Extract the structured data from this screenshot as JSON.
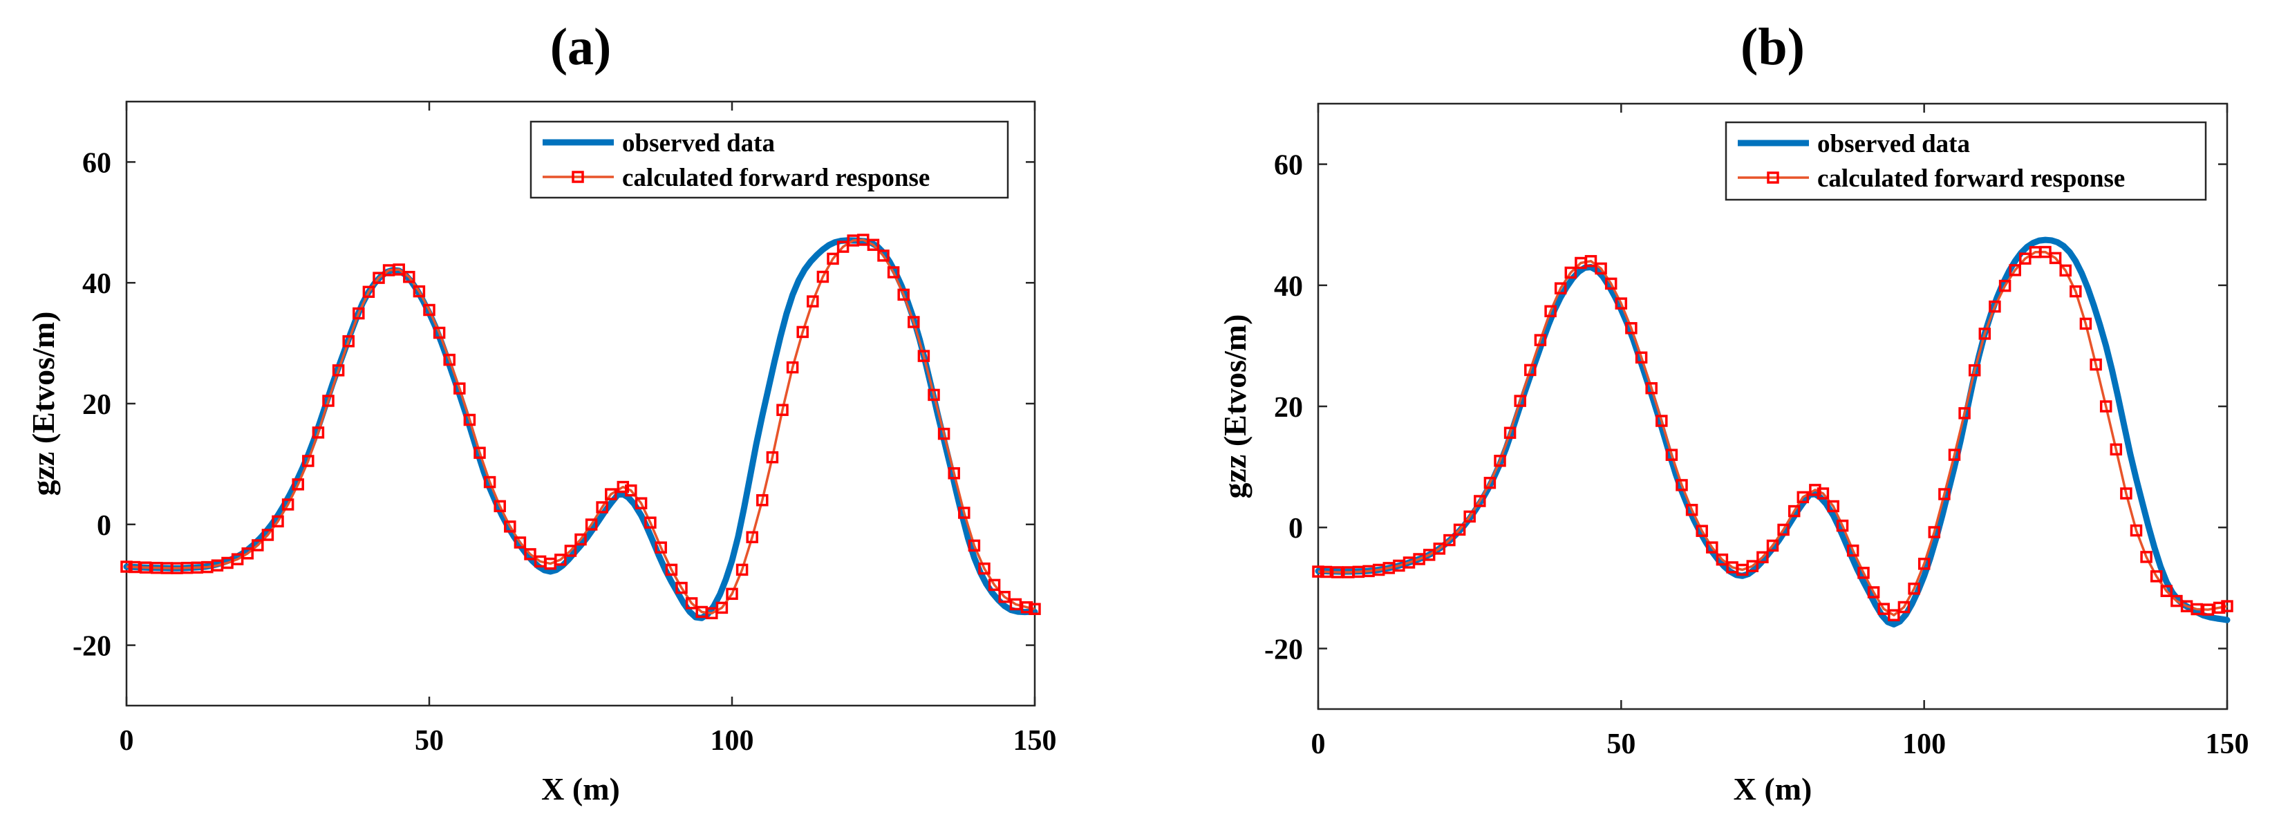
{
  "chart_data": [
    {
      "type": "line",
      "title": "(a)",
      "xlabel": "X (m)",
      "ylabel": "gzz (Etvos/m)",
      "xlim": [
        0,
        150
      ],
      "ylim": [
        -30,
        70
      ],
      "xticks": [
        0,
        50,
        100,
        150
      ],
      "yticks": [
        -20,
        0,
        20,
        40,
        60
      ],
      "legend_position": "top-right",
      "series": [
        {
          "name": "observed data",
          "color": "#0072BD",
          "style": "line",
          "x": [
            0,
            5,
            10,
            15,
            20,
            25,
            30,
            35,
            40,
            45,
            50,
            55,
            60,
            65,
            70,
            75,
            80,
            82,
            85,
            90,
            95,
            100,
            105,
            110,
            115,
            120,
            125,
            130,
            135,
            140,
            145,
            150
          ],
          "y": [
            -7,
            -7.2,
            -7.2,
            -6.6,
            -4.2,
            1.5,
            11.5,
            26,
            38.5,
            42,
            35,
            21.5,
            6,
            -3.5,
            -7.8,
            -3.5,
            3.5,
            5,
            1.5,
            -9.5,
            -15.5,
            -6,
            18,
            38,
            45.5,
            47,
            45,
            34,
            14,
            -5.5,
            -13.5,
            -14.5
          ]
        },
        {
          "name": "calculated forward response",
          "color": "#FF0000",
          "lineColor": "#E8542A",
          "style": "line-square-markers",
          "x": [
            0,
            5,
            10,
            15,
            20,
            25,
            30,
            35,
            40,
            45,
            50,
            55,
            60,
            65,
            70,
            75,
            80,
            82,
            85,
            90,
            95,
            100,
            105,
            110,
            115,
            120,
            125,
            130,
            135,
            140,
            145,
            150
          ],
          "y": [
            -7,
            -7.2,
            -7.2,
            -6.8,
            -4.8,
            0.5,
            10.5,
            25.5,
            38.5,
            42.2,
            35.5,
            22.5,
            7,
            -3,
            -6.5,
            -2.5,
            5,
            6.2,
            3.5,
            -7.5,
            -14.5,
            -11.5,
            4,
            26,
            41,
            47,
            44.5,
            33.5,
            15,
            -3.5,
            -12,
            -14
          ]
        }
      ]
    },
    {
      "type": "line",
      "title": "(b)",
      "xlabel": "X (m)",
      "ylabel": "gzz (Etvos/m)",
      "xlim": [
        0,
        150
      ],
      "ylim": [
        -30,
        70
      ],
      "xticks": [
        0,
        50,
        100,
        150
      ],
      "yticks": [
        -20,
        0,
        20,
        40,
        60
      ],
      "legend_position": "top-right",
      "series": [
        {
          "name": "observed data",
          "color": "#0072BD",
          "style": "line",
          "x": [
            0,
            5,
            10,
            15,
            20,
            25,
            30,
            35,
            40,
            45,
            50,
            55,
            60,
            65,
            70,
            75,
            80,
            82,
            85,
            90,
            95,
            100,
            105,
            110,
            115,
            120,
            125,
            130,
            135,
            140,
            145,
            150
          ],
          "y": [
            -7.2,
            -7.3,
            -7,
            -5.8,
            -3.5,
            1.5,
            10.5,
            25,
            38,
            43,
            36,
            22,
            6,
            -4,
            -8,
            -3.5,
            4,
            5.5,
            2,
            -9,
            -16,
            -8,
            10,
            32,
            44,
            47.5,
            44,
            30,
            8,
            -9,
            -14,
            -15.3
          ]
        },
        {
          "name": "calculated forward response",
          "color": "#FF0000",
          "lineColor": "#E8542A",
          "style": "line-square-markers",
          "x": [
            0,
            5,
            10,
            15,
            20,
            25,
            30,
            35,
            40,
            45,
            50,
            55,
            60,
            65,
            70,
            75,
            80,
            82,
            85,
            90,
            95,
            100,
            105,
            110,
            115,
            120,
            125,
            130,
            135,
            140,
            145,
            150
          ],
          "y": [
            -7.3,
            -7.4,
            -7,
            -5.8,
            -3.5,
            1.8,
            11,
            26,
            39.5,
            44,
            37,
            23,
            7,
            -3.3,
            -7,
            -3,
            5,
            6.2,
            3.5,
            -7.5,
            -14.5,
            -6,
            12,
            32,
            42.5,
            45.5,
            39,
            20,
            -0.5,
            -10.5,
            -13.5,
            -13
          ]
        }
      ]
    }
  ]
}
